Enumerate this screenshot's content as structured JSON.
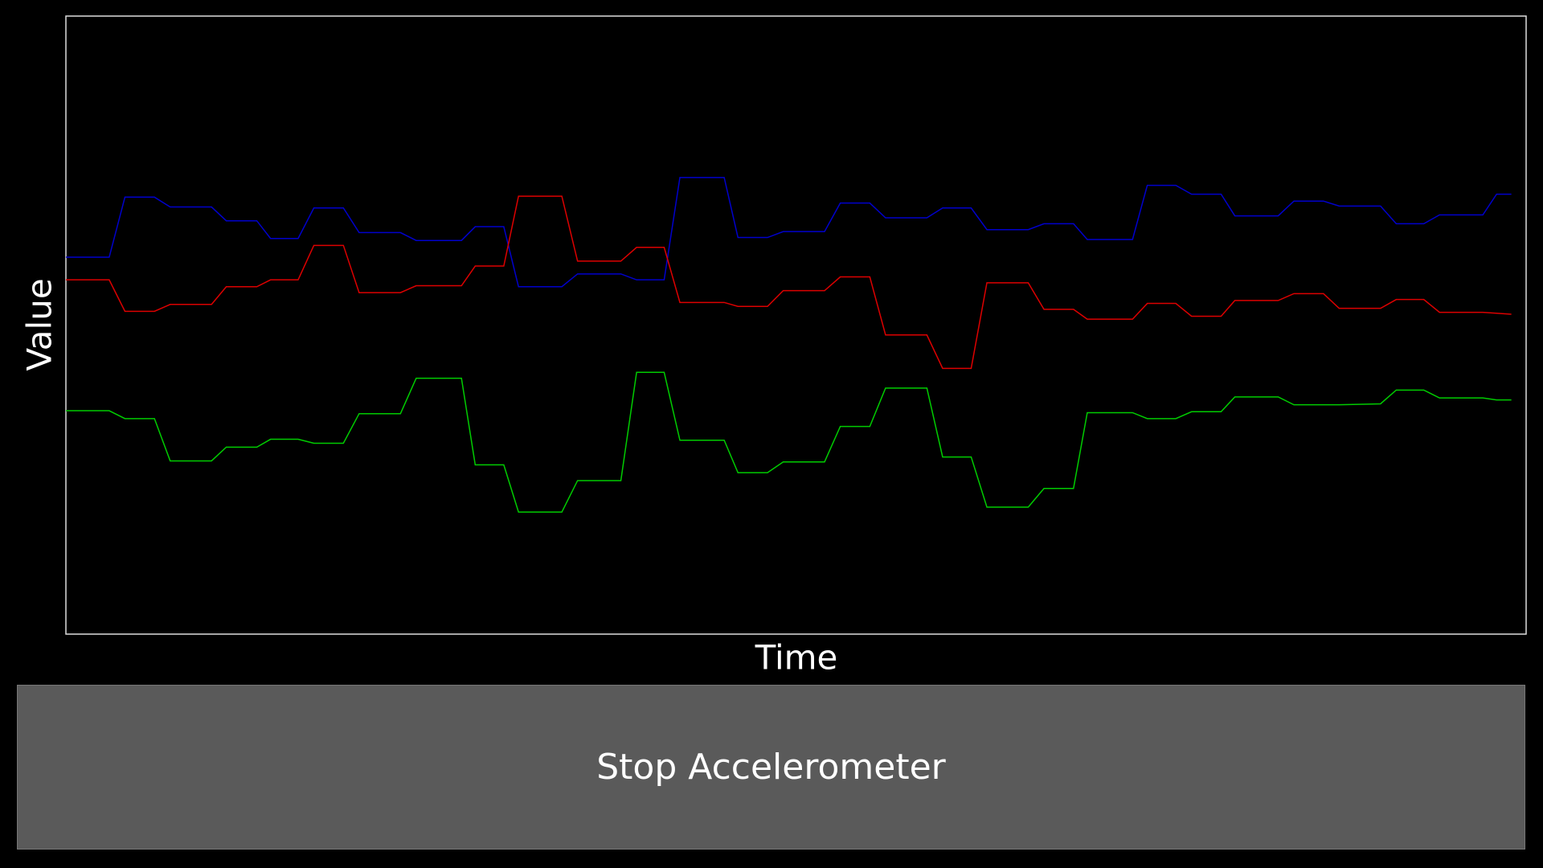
{
  "chart_data": {
    "type": "line",
    "xlabel": "Time",
    "ylabel": "Value",
    "x": [
      0,
      44,
      60,
      90,
      106,
      148,
      163,
      194,
      208,
      236,
      252,
      282,
      298,
      340,
      356,
      402,
      416,
      445,
      460,
      504,
      520,
      564,
      580,
      608,
      624,
      669,
      683,
      713,
      729,
      771,
      787,
      817,
      833,
      875,
      891,
      920,
      936,
      978,
      994,
      1024,
      1038,
      1084,
      1099,
      1128,
      1144,
      1174,
      1188,
      1232,
      1248,
      1278,
      1294,
      1336,
      1352,
      1380,
      1396,
      1440,
      1454,
      1469
    ],
    "xlim": [
      0,
      1484
    ],
    "ylim": [
      0,
      628
    ],
    "series": [
      {
        "color": "#0000cc",
        "values": [
          383,
          383,
          444,
          444,
          434,
          434,
          420,
          420,
          402,
          402,
          433,
          433,
          408,
          408,
          400,
          400,
          414,
          414,
          353,
          353,
          366,
          366,
          360,
          360,
          464,
          464,
          403,
          403,
          409,
          409,
          438,
          438,
          423,
          423,
          433,
          433,
          411,
          411,
          417,
          417,
          401,
          401,
          456,
          456,
          447,
          447,
          425,
          425,
          440,
          440,
          435,
          435,
          417,
          417,
          426,
          426,
          447,
          447
        ]
      },
      {
        "color": "#dd0000",
        "values": [
          360,
          360,
          328,
          328,
          335,
          335,
          353,
          353,
          360,
          360,
          395,
          395,
          347,
          347,
          354,
          354,
          374,
          374,
          445,
          445,
          379,
          379,
          393,
          393,
          337,
          337,
          333,
          333,
          349,
          349,
          363,
          363,
          304,
          304,
          270,
          270,
          357,
          357,
          330,
          330,
          320,
          320,
          336,
          336,
          323,
          323,
          339,
          339,
          346,
          346,
          331,
          331,
          340,
          340,
          327,
          327,
          326,
          325
        ]
      },
      {
        "color": "#00cc00",
        "values": [
          227,
          227,
          219,
          219,
          176,
          176,
          190,
          190,
          198,
          198,
          194,
          194,
          224,
          224,
          260,
          260,
          172,
          172,
          124,
          124,
          156,
          156,
          266,
          266,
          197,
          197,
          164,
          164,
          175,
          175,
          211,
          211,
          250,
          250,
          180,
          180,
          129,
          129,
          148,
          148,
          225,
          225,
          219,
          219,
          226,
          226,
          241,
          241,
          233,
          233,
          233,
          234,
          248,
          248,
          240,
          240,
          238,
          238
        ]
      }
    ]
  },
  "button": {
    "label": "Stop Accelerometer"
  }
}
